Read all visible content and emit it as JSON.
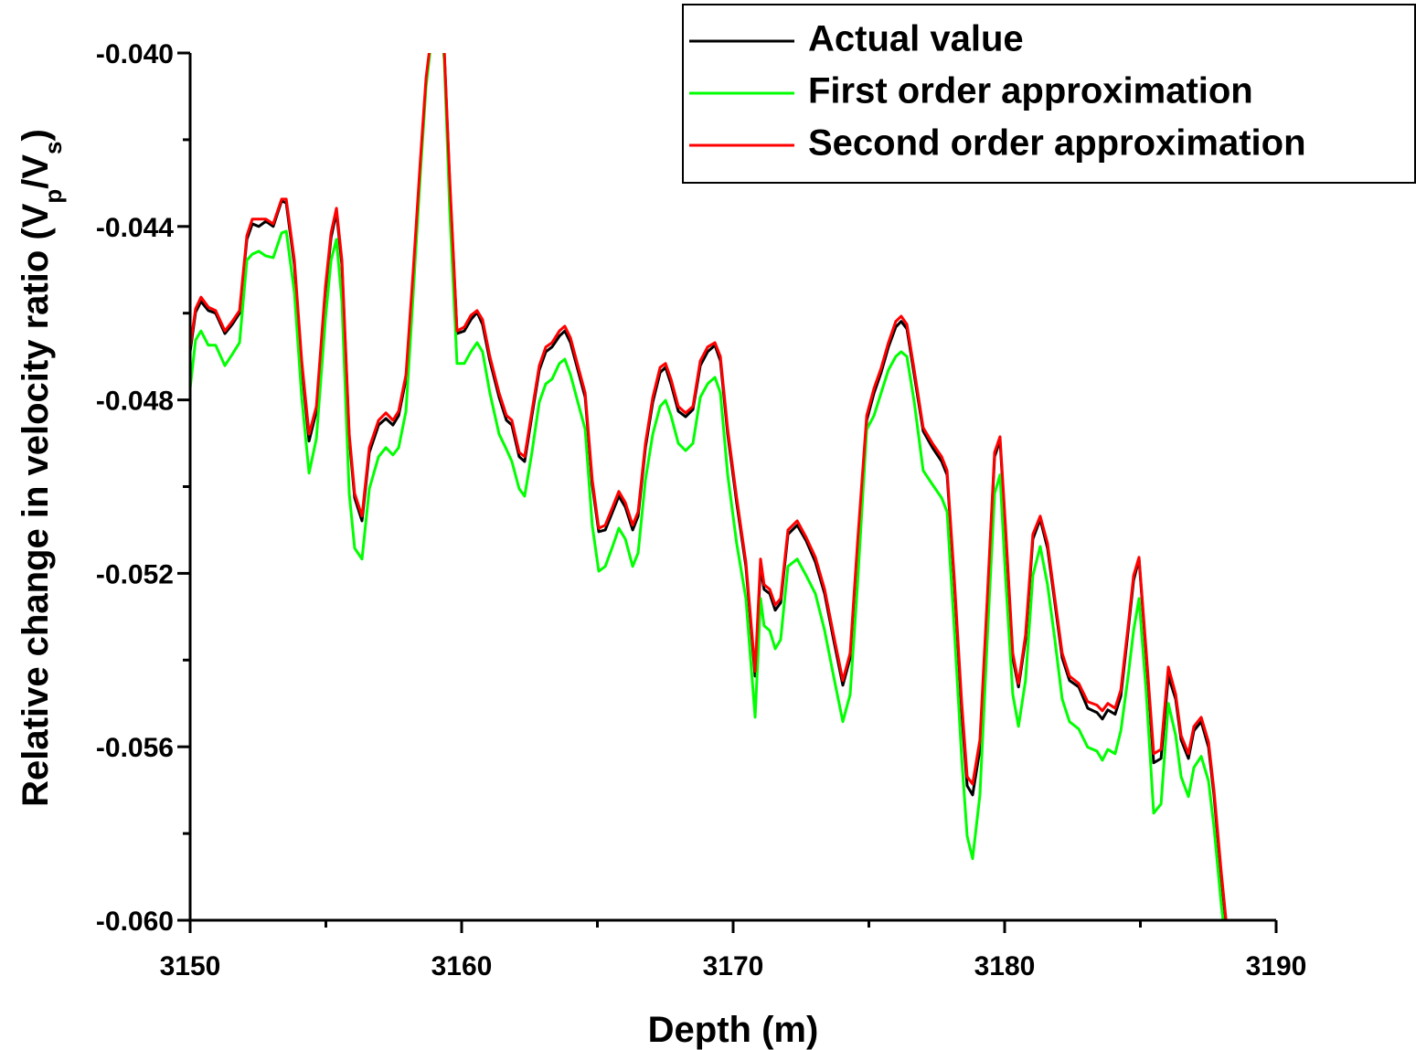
{
  "chart_data": {
    "type": "line",
    "x_label": "Depth (m)",
    "y_label": [
      "Relative change in velocity ratio (V",
      "p",
      "/V",
      "s",
      ")"
    ],
    "xlim": [
      3150,
      3190
    ],
    "ylim": [
      -0.06,
      -0.04
    ],
    "xticks": [
      3150,
      3160,
      3170,
      3180,
      3190
    ],
    "xminorticks": [
      3155,
      3165,
      3175,
      3185
    ],
    "yticks": [
      {
        "value": -0.06,
        "label": "-0.060"
      },
      {
        "value": -0.056,
        "label": "-0.056"
      },
      {
        "value": -0.052,
        "label": "-0.052"
      },
      {
        "value": -0.048,
        "label": "-0.048"
      },
      {
        "value": -0.044,
        "label": "-0.044"
      },
      {
        "value": -0.04,
        "label": "-0.040"
      }
    ],
    "yminorticks": [
      -0.058,
      -0.054,
      -0.05,
      -0.046,
      -0.042
    ],
    "legend": "top-right",
    "x": [
      3150.0,
      3150.2,
      3150.4,
      3150.67,
      3150.94,
      3151.28,
      3151.55,
      3151.82,
      3152.09,
      3152.29,
      3152.53,
      3152.79,
      3153.06,
      3153.37,
      3153.54,
      3153.84,
      3154.11,
      3154.38,
      3154.65,
      3154.98,
      3155.19,
      3155.39,
      3155.59,
      3155.86,
      3156.06,
      3156.33,
      3156.6,
      3156.94,
      3157.21,
      3157.47,
      3157.68,
      3157.95,
      3158.22,
      3158.48,
      3158.69,
      3159.09,
      3159.36,
      3159.56,
      3159.83,
      3160.1,
      3160.34,
      3160.57,
      3160.77,
      3161.04,
      3161.38,
      3161.65,
      3161.85,
      3162.12,
      3162.32,
      3162.59,
      3162.86,
      3163.1,
      3163.33,
      3163.6,
      3163.8,
      3164.01,
      3164.28,
      3164.55,
      3164.81,
      3165.05,
      3165.29,
      3165.56,
      3165.79,
      3166.03,
      3166.3,
      3166.5,
      3166.77,
      3167.04,
      3167.31,
      3167.51,
      3167.71,
      3167.98,
      3168.25,
      3168.52,
      3168.79,
      3169.06,
      3169.33,
      3169.53,
      3169.8,
      3170.13,
      3170.47,
      3170.81,
      3171.01,
      3171.14,
      3171.35,
      3171.55,
      3171.75,
      3172.02,
      3172.36,
      3172.69,
      3173.03,
      3173.37,
      3173.7,
      3174.04,
      3174.31,
      3174.58,
      3174.92,
      3175.19,
      3175.45,
      3175.72,
      3175.99,
      3176.19,
      3176.4,
      3176.67,
      3177.0,
      3177.34,
      3177.68,
      3177.88,
      3178.15,
      3178.42,
      3178.62,
      3178.82,
      3179.09,
      3179.36,
      3179.63,
      3179.83,
      3180.03,
      3180.3,
      3180.51,
      3180.77,
      3181.04,
      3181.31,
      3181.58,
      3181.85,
      3182.12,
      3182.39,
      3182.73,
      3183.06,
      3183.4,
      3183.6,
      3183.8,
      3184.07,
      3184.28,
      3184.55,
      3184.75,
      3184.95,
      3185.22,
      3185.49,
      3185.76,
      3186.03,
      3186.3,
      3186.5,
      3186.77,
      3186.97,
      3187.24,
      3187.51,
      3187.71,
      3187.98,
      3188.25
    ],
    "series": [
      {
        "name": "Actual value",
        "color": "#000000",
        "values": [
          -0.04689,
          -0.04598,
          -0.04573,
          -0.04594,
          -0.046,
          -0.04647,
          -0.04626,
          -0.046,
          -0.0443,
          -0.04394,
          -0.044,
          -0.04388,
          -0.044,
          -0.04341,
          -0.04346,
          -0.04489,
          -0.04721,
          -0.04895,
          -0.04826,
          -0.04552,
          -0.04426,
          -0.04367,
          -0.04489,
          -0.04889,
          -0.05026,
          -0.05079,
          -0.04921,
          -0.04858,
          -0.04843,
          -0.04858,
          -0.04836,
          -0.04752,
          -0.0451,
          -0.04257,
          -0.04067,
          -0.03857,
          -0.04,
          -0.04299,
          -0.04647,
          -0.04641,
          -0.04615,
          -0.04598,
          -0.04626,
          -0.0471,
          -0.04794,
          -0.04847,
          -0.04858,
          -0.04931,
          -0.04942,
          -0.04836,
          -0.04731,
          -0.04689,
          -0.04678,
          -0.04653,
          -0.04641,
          -0.04668,
          -0.04731,
          -0.04794,
          -0.04995,
          -0.05104,
          -0.051,
          -0.05058,
          -0.05022,
          -0.05047,
          -0.051,
          -0.05068,
          -0.0491,
          -0.04805,
          -0.04737,
          -0.04725,
          -0.04763,
          -0.04826,
          -0.04839,
          -0.04822,
          -0.04721,
          -0.04689,
          -0.04674,
          -0.0471,
          -0.04879,
          -0.05037,
          -0.05184,
          -0.05437,
          -0.05184,
          -0.05237,
          -0.05247,
          -0.05285,
          -0.05268,
          -0.0511,
          -0.05089,
          -0.05125,
          -0.05174,
          -0.05247,
          -0.05353,
          -0.05458,
          -0.05395,
          -0.05142,
          -0.04847,
          -0.04784,
          -0.04737,
          -0.04678,
          -0.04632,
          -0.04619,
          -0.04636,
          -0.04742,
          -0.04872,
          -0.0491,
          -0.04942,
          -0.04973,
          -0.05226,
          -0.05521,
          -0.0569,
          -0.05711,
          -0.05606,
          -0.05268,
          -0.04931,
          -0.04893,
          -0.051,
          -0.05395,
          -0.05462,
          -0.05353,
          -0.05121,
          -0.05075,
          -0.05142,
          -0.05268,
          -0.05395,
          -0.05447,
          -0.05462,
          -0.05511,
          -0.05521,
          -0.05536,
          -0.05515,
          -0.05525,
          -0.05483,
          -0.05332,
          -0.05216,
          -0.05167,
          -0.05395,
          -0.05637,
          -0.05627,
          -0.05437,
          -0.0549,
          -0.05584,
          -0.05627,
          -0.05563,
          -0.05542,
          -0.05601,
          -0.05711,
          -0.05901,
          -0.06069
        ]
      },
      {
        "name": "First order approximation",
        "color": "#00ff00",
        "values": [
          -0.04773,
          -0.04662,
          -0.04641,
          -0.04674,
          -0.04674,
          -0.04721,
          -0.04695,
          -0.04668,
          -0.04478,
          -0.04464,
          -0.04457,
          -0.04468,
          -0.04472,
          -0.04415,
          -0.04411,
          -0.04552,
          -0.04794,
          -0.04969,
          -0.04889,
          -0.04615,
          -0.04478,
          -0.0443,
          -0.04573,
          -0.05016,
          -0.05142,
          -0.05167,
          -0.05005,
          -0.04931,
          -0.0491,
          -0.04927,
          -0.0491,
          -0.04826,
          -0.04552,
          -0.04278,
          -0.04078,
          -0.03857,
          -0.04015,
          -0.04362,
          -0.04716,
          -0.04716,
          -0.04689,
          -0.04668,
          -0.04689,
          -0.04784,
          -0.04879,
          -0.04914,
          -0.04942,
          -0.05005,
          -0.05022,
          -0.04921,
          -0.04805,
          -0.04763,
          -0.04752,
          -0.04716,
          -0.04706,
          -0.04742,
          -0.04805,
          -0.04868,
          -0.05089,
          -0.05195,
          -0.05184,
          -0.05138,
          -0.05096,
          -0.05121,
          -0.05184,
          -0.05153,
          -0.04984,
          -0.04879,
          -0.04815,
          -0.04801,
          -0.04836,
          -0.049,
          -0.04917,
          -0.049,
          -0.04794,
          -0.04763,
          -0.04748,
          -0.04784,
          -0.04973,
          -0.05131,
          -0.05258,
          -0.05532,
          -0.05258,
          -0.05321,
          -0.05332,
          -0.05374,
          -0.05353,
          -0.05184,
          -0.05167,
          -0.05205,
          -0.05247,
          -0.05332,
          -0.05437,
          -0.05542,
          -0.05479,
          -0.05226,
          -0.04868,
          -0.04836,
          -0.04784,
          -0.04731,
          -0.047,
          -0.04689,
          -0.047,
          -0.04805,
          -0.04963,
          -0.04995,
          -0.05026,
          -0.05058,
          -0.05332,
          -0.05627,
          -0.05806,
          -0.05858,
          -0.05711,
          -0.05353,
          -0.05016,
          -0.04973,
          -0.05205,
          -0.05479,
          -0.05553,
          -0.05447,
          -0.05205,
          -0.05138,
          -0.05226,
          -0.05353,
          -0.0549,
          -0.05542,
          -0.05559,
          -0.05601,
          -0.0561,
          -0.05631,
          -0.05606,
          -0.05616,
          -0.05563,
          -0.05437,
          -0.05332,
          -0.05258,
          -0.05479,
          -0.05753,
          -0.05732,
          -0.055,
          -0.05574,
          -0.05669,
          -0.05715,
          -0.05648,
          -0.05622,
          -0.05679,
          -0.05785,
          -0.05964,
          -0.06111
        ]
      },
      {
        "name": "Second order approximation",
        "color": "#ff0000",
        "values": [
          -0.04678,
          -0.0459,
          -0.04563,
          -0.04586,
          -0.04594,
          -0.04641,
          -0.04619,
          -0.04594,
          -0.04421,
          -0.04383,
          -0.04383,
          -0.04383,
          -0.04394,
          -0.04337,
          -0.04337,
          -0.04478,
          -0.0471,
          -0.04879,
          -0.04815,
          -0.04541,
          -0.04415,
          -0.04358,
          -0.04478,
          -0.04879,
          -0.05016,
          -0.05068,
          -0.0491,
          -0.04847,
          -0.0483,
          -0.04847,
          -0.04826,
          -0.04742,
          -0.04499,
          -0.04247,
          -0.04057,
          -0.03853,
          -0.03994,
          -0.04289,
          -0.04641,
          -0.04632,
          -0.04605,
          -0.04594,
          -0.04615,
          -0.047,
          -0.04784,
          -0.04836,
          -0.04847,
          -0.04921,
          -0.04931,
          -0.04826,
          -0.04721,
          -0.04678,
          -0.04668,
          -0.04641,
          -0.0463,
          -0.04657,
          -0.04721,
          -0.04784,
          -0.04984,
          -0.05096,
          -0.05089,
          -0.05047,
          -0.05011,
          -0.05037,
          -0.05089,
          -0.05058,
          -0.049,
          -0.04794,
          -0.04725,
          -0.04716,
          -0.04752,
          -0.04815,
          -0.0483,
          -0.04815,
          -0.0471,
          -0.04678,
          -0.04668,
          -0.047,
          -0.04868,
          -0.05026,
          -0.05174,
          -0.05426,
          -0.05167,
          -0.05226,
          -0.05237,
          -0.05273,
          -0.05258,
          -0.051,
          -0.05079,
          -0.05117,
          -0.05163,
          -0.05237,
          -0.05342,
          -0.05447,
          -0.05384,
          -0.05131,
          -0.04836,
          -0.04773,
          -0.04727,
          -0.04668,
          -0.04619,
          -0.04607,
          -0.04626,
          -0.04731,
          -0.04864,
          -0.049,
          -0.04931,
          -0.04963,
          -0.05216,
          -0.055,
          -0.05669,
          -0.05686,
          -0.05584,
          -0.05258,
          -0.04921,
          -0.04885,
          -0.05089,
          -0.05384,
          -0.05454,
          -0.05342,
          -0.0511,
          -0.05068,
          -0.05131,
          -0.05258,
          -0.05384,
          -0.05437,
          -0.05454,
          -0.05496,
          -0.05504,
          -0.05517,
          -0.055,
          -0.05511,
          -0.05469,
          -0.05321,
          -0.05205,
          -0.05163,
          -0.05384,
          -0.05616,
          -0.05606,
          -0.05416,
          -0.05479,
          -0.05574,
          -0.05616,
          -0.05553,
          -0.05532,
          -0.05589,
          -0.057,
          -0.0589,
          -0.06059
        ]
      }
    ]
  }
}
